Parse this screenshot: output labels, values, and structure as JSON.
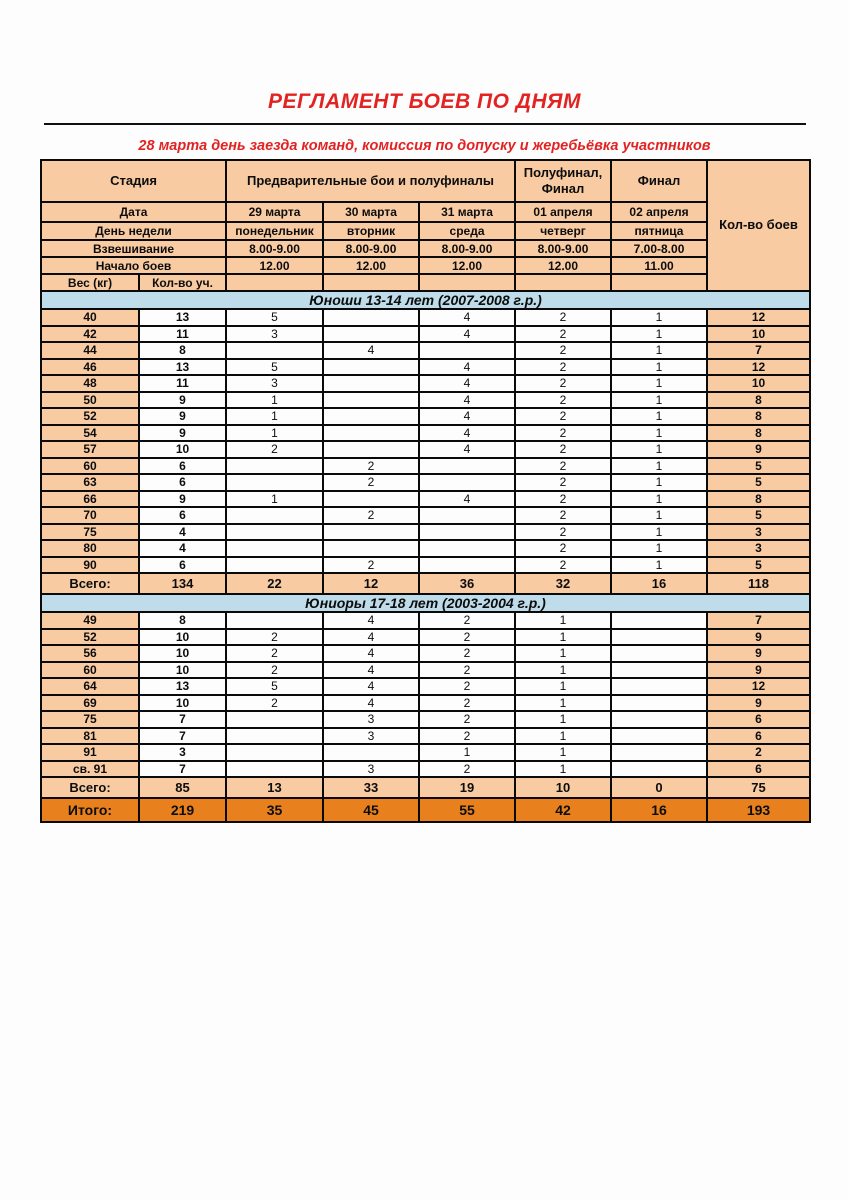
{
  "page": {
    "title": "РЕГЛАМЕНТ БОЕВ ПО ДНЯМ",
    "subtitle": "28 марта день заезда команд, комиссия по допуску и жеребьёвка участников"
  },
  "colors": {
    "accent_red": "#e32222",
    "cell_peach": "#f8cba3",
    "section_blue": "#bedce9",
    "grand_total_orange": "#e8801e",
    "border_black": "#0a0a0a"
  },
  "table": {
    "header": {
      "stage_label": "Стадия",
      "prelim_label": "Предварительные бои и полуфиналы",
      "semifinal_final_label": "Полуфинал, Финал",
      "final_label": "Финал",
      "bouts_label": "Кол-во боев",
      "date_label": "Дата",
      "dates": [
        "29 марта",
        "30 марта",
        "31 марта",
        "01 апреля",
        "02 апреля"
      ],
      "weekday_label": "День недели",
      "weekdays": [
        "понедельник",
        "вторник",
        "среда",
        "четверг",
        "пятница"
      ],
      "weighin_label": "Взвешивание",
      "weighins": [
        "8.00-9.00",
        "8.00-9.00",
        "8.00-9.00",
        "8.00-9.00",
        "7.00-8.00"
      ],
      "start_label": "Начало боев",
      "starts": [
        "12.00",
        "12.00",
        "12.00",
        "12.00",
        "11.00"
      ],
      "weight_label": "Вес (кг)",
      "participants_label": "Кол-во уч."
    },
    "sections": [
      {
        "title": "Юноши 13-14 лет (2007-2008 г.р.)",
        "rows": [
          {
            "weight": "40",
            "participants": "13",
            "days": [
              "5",
              "",
              "4",
              "2",
              "1"
            ],
            "bouts": "12"
          },
          {
            "weight": "42",
            "participants": "11",
            "days": [
              "3",
              "",
              "4",
              "2",
              "1"
            ],
            "bouts": "10"
          },
          {
            "weight": "44",
            "participants": "8",
            "days": [
              "",
              "4",
              "",
              "2",
              "1"
            ],
            "bouts": "7"
          },
          {
            "weight": "46",
            "participants": "13",
            "days": [
              "5",
              "",
              "4",
              "2",
              "1"
            ],
            "bouts": "12"
          },
          {
            "weight": "48",
            "participants": "11",
            "days": [
              "3",
              "",
              "4",
              "2",
              "1"
            ],
            "bouts": "10"
          },
          {
            "weight": "50",
            "participants": "9",
            "days": [
              "1",
              "",
              "4",
              "2",
              "1"
            ],
            "bouts": "8"
          },
          {
            "weight": "52",
            "participants": "9",
            "days": [
              "1",
              "",
              "4",
              "2",
              "1"
            ],
            "bouts": "8"
          },
          {
            "weight": "54",
            "participants": "9",
            "days": [
              "1",
              "",
              "4",
              "2",
              "1"
            ],
            "bouts": "8"
          },
          {
            "weight": "57",
            "participants": "10",
            "days": [
              "2",
              "",
              "4",
              "2",
              "1"
            ],
            "bouts": "9"
          },
          {
            "weight": "60",
            "participants": "6",
            "days": [
              "",
              "2",
              "",
              "2",
              "1"
            ],
            "bouts": "5"
          },
          {
            "weight": "63",
            "participants": "6",
            "days": [
              "",
              "2",
              "",
              "2",
              "1"
            ],
            "bouts": "5"
          },
          {
            "weight": "66",
            "participants": "9",
            "days": [
              "1",
              "",
              "4",
              "2",
              "1"
            ],
            "bouts": "8"
          },
          {
            "weight": "70",
            "participants": "6",
            "days": [
              "",
              "2",
              "",
              "2",
              "1"
            ],
            "bouts": "5"
          },
          {
            "weight": "75",
            "participants": "4",
            "days": [
              "",
              "",
              "",
              "2",
              "1"
            ],
            "bouts": "3"
          },
          {
            "weight": "80",
            "participants": "4",
            "days": [
              "",
              "",
              "",
              "2",
              "1"
            ],
            "bouts": "3"
          },
          {
            "weight": "90",
            "participants": "6",
            "days": [
              "",
              "2",
              "",
              "2",
              "1"
            ],
            "bouts": "5"
          }
        ],
        "total": {
          "label": "Всего:",
          "participants": "134",
          "days": [
            "22",
            "12",
            "36",
            "32",
            "16"
          ],
          "bouts": "118"
        }
      },
      {
        "title": "Юниоры 17-18 лет (2003-2004 г.р.)",
        "rows": [
          {
            "weight": "49",
            "participants": "8",
            "days": [
              "",
              "4",
              "2",
              "1",
              ""
            ],
            "bouts": "7"
          },
          {
            "weight": "52",
            "participants": "10",
            "days": [
              "2",
              "4",
              "2",
              "1",
              ""
            ],
            "bouts": "9"
          },
          {
            "weight": "56",
            "participants": "10",
            "days": [
              "2",
              "4",
              "2",
              "1",
              ""
            ],
            "bouts": "9"
          },
          {
            "weight": "60",
            "participants": "10",
            "days": [
              "2",
              "4",
              "2",
              "1",
              ""
            ],
            "bouts": "9"
          },
          {
            "weight": "64",
            "participants": "13",
            "days": [
              "5",
              "4",
              "2",
              "1",
              ""
            ],
            "bouts": "12"
          },
          {
            "weight": "69",
            "participants": "10",
            "days": [
              "2",
              "4",
              "2",
              "1",
              ""
            ],
            "bouts": "9"
          },
          {
            "weight": "75",
            "participants": "7",
            "days": [
              "",
              "3",
              "2",
              "1",
              ""
            ],
            "bouts": "6"
          },
          {
            "weight": "81",
            "participants": "7",
            "days": [
              "",
              "3",
              "2",
              "1",
              ""
            ],
            "bouts": "6"
          },
          {
            "weight": "91",
            "participants": "3",
            "days": [
              "",
              "",
              "1",
              "1",
              ""
            ],
            "bouts": "2"
          },
          {
            "weight": "св. 91",
            "participants": "7",
            "days": [
              "",
              "3",
              "2",
              "1",
              ""
            ],
            "bouts": "6"
          }
        ],
        "total": {
          "label": "Всего:",
          "participants": "85",
          "days": [
            "13",
            "33",
            "19",
            "10",
            "0"
          ],
          "bouts": "75"
        }
      }
    ],
    "grand_total": {
      "label": "Итого:",
      "participants": "219",
      "days": [
        "35",
        "45",
        "55",
        "42",
        "16"
      ],
      "bouts": "193"
    }
  }
}
